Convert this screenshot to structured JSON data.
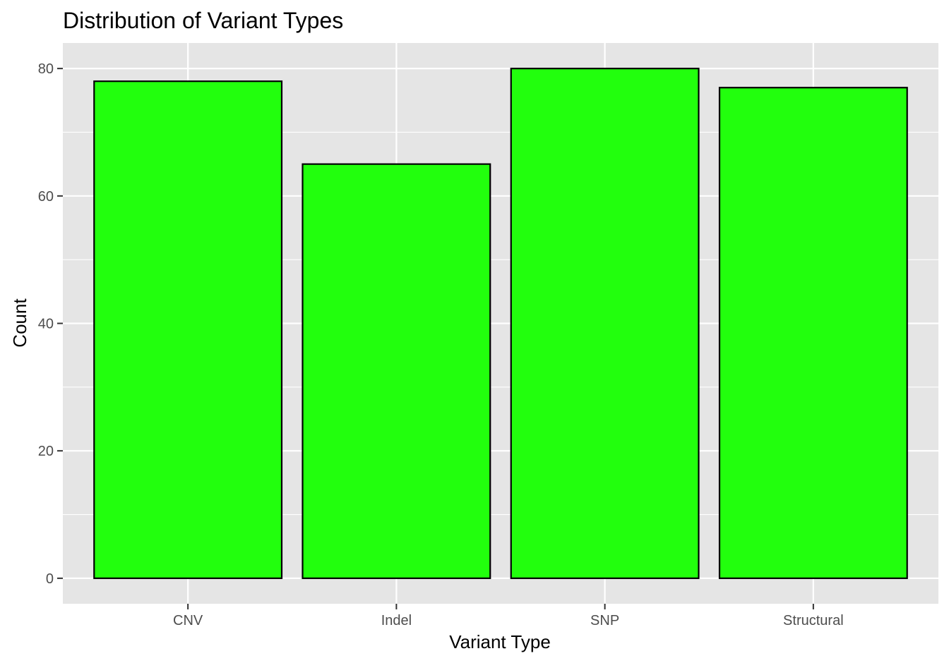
{
  "chart_data": {
    "type": "bar",
    "title": "Distribution of Variant Types",
    "xlabel": "Variant Type",
    "ylabel": "Count",
    "categories": [
      "CNV",
      "Indel",
      "SNP",
      "Structural"
    ],
    "values": [
      78,
      65,
      80,
      77
    ],
    "ylim": [
      -4,
      84
    ],
    "yticks": [
      0,
      20,
      40,
      60,
      80
    ],
    "grid": true,
    "legend": "none",
    "colors": {
      "bar_fill": "#22ff0d",
      "bar_stroke": "#000000",
      "panel_background": "#e5e5e5",
      "grid": "#ffffff",
      "tick_label": "#4d4d4d"
    }
  }
}
